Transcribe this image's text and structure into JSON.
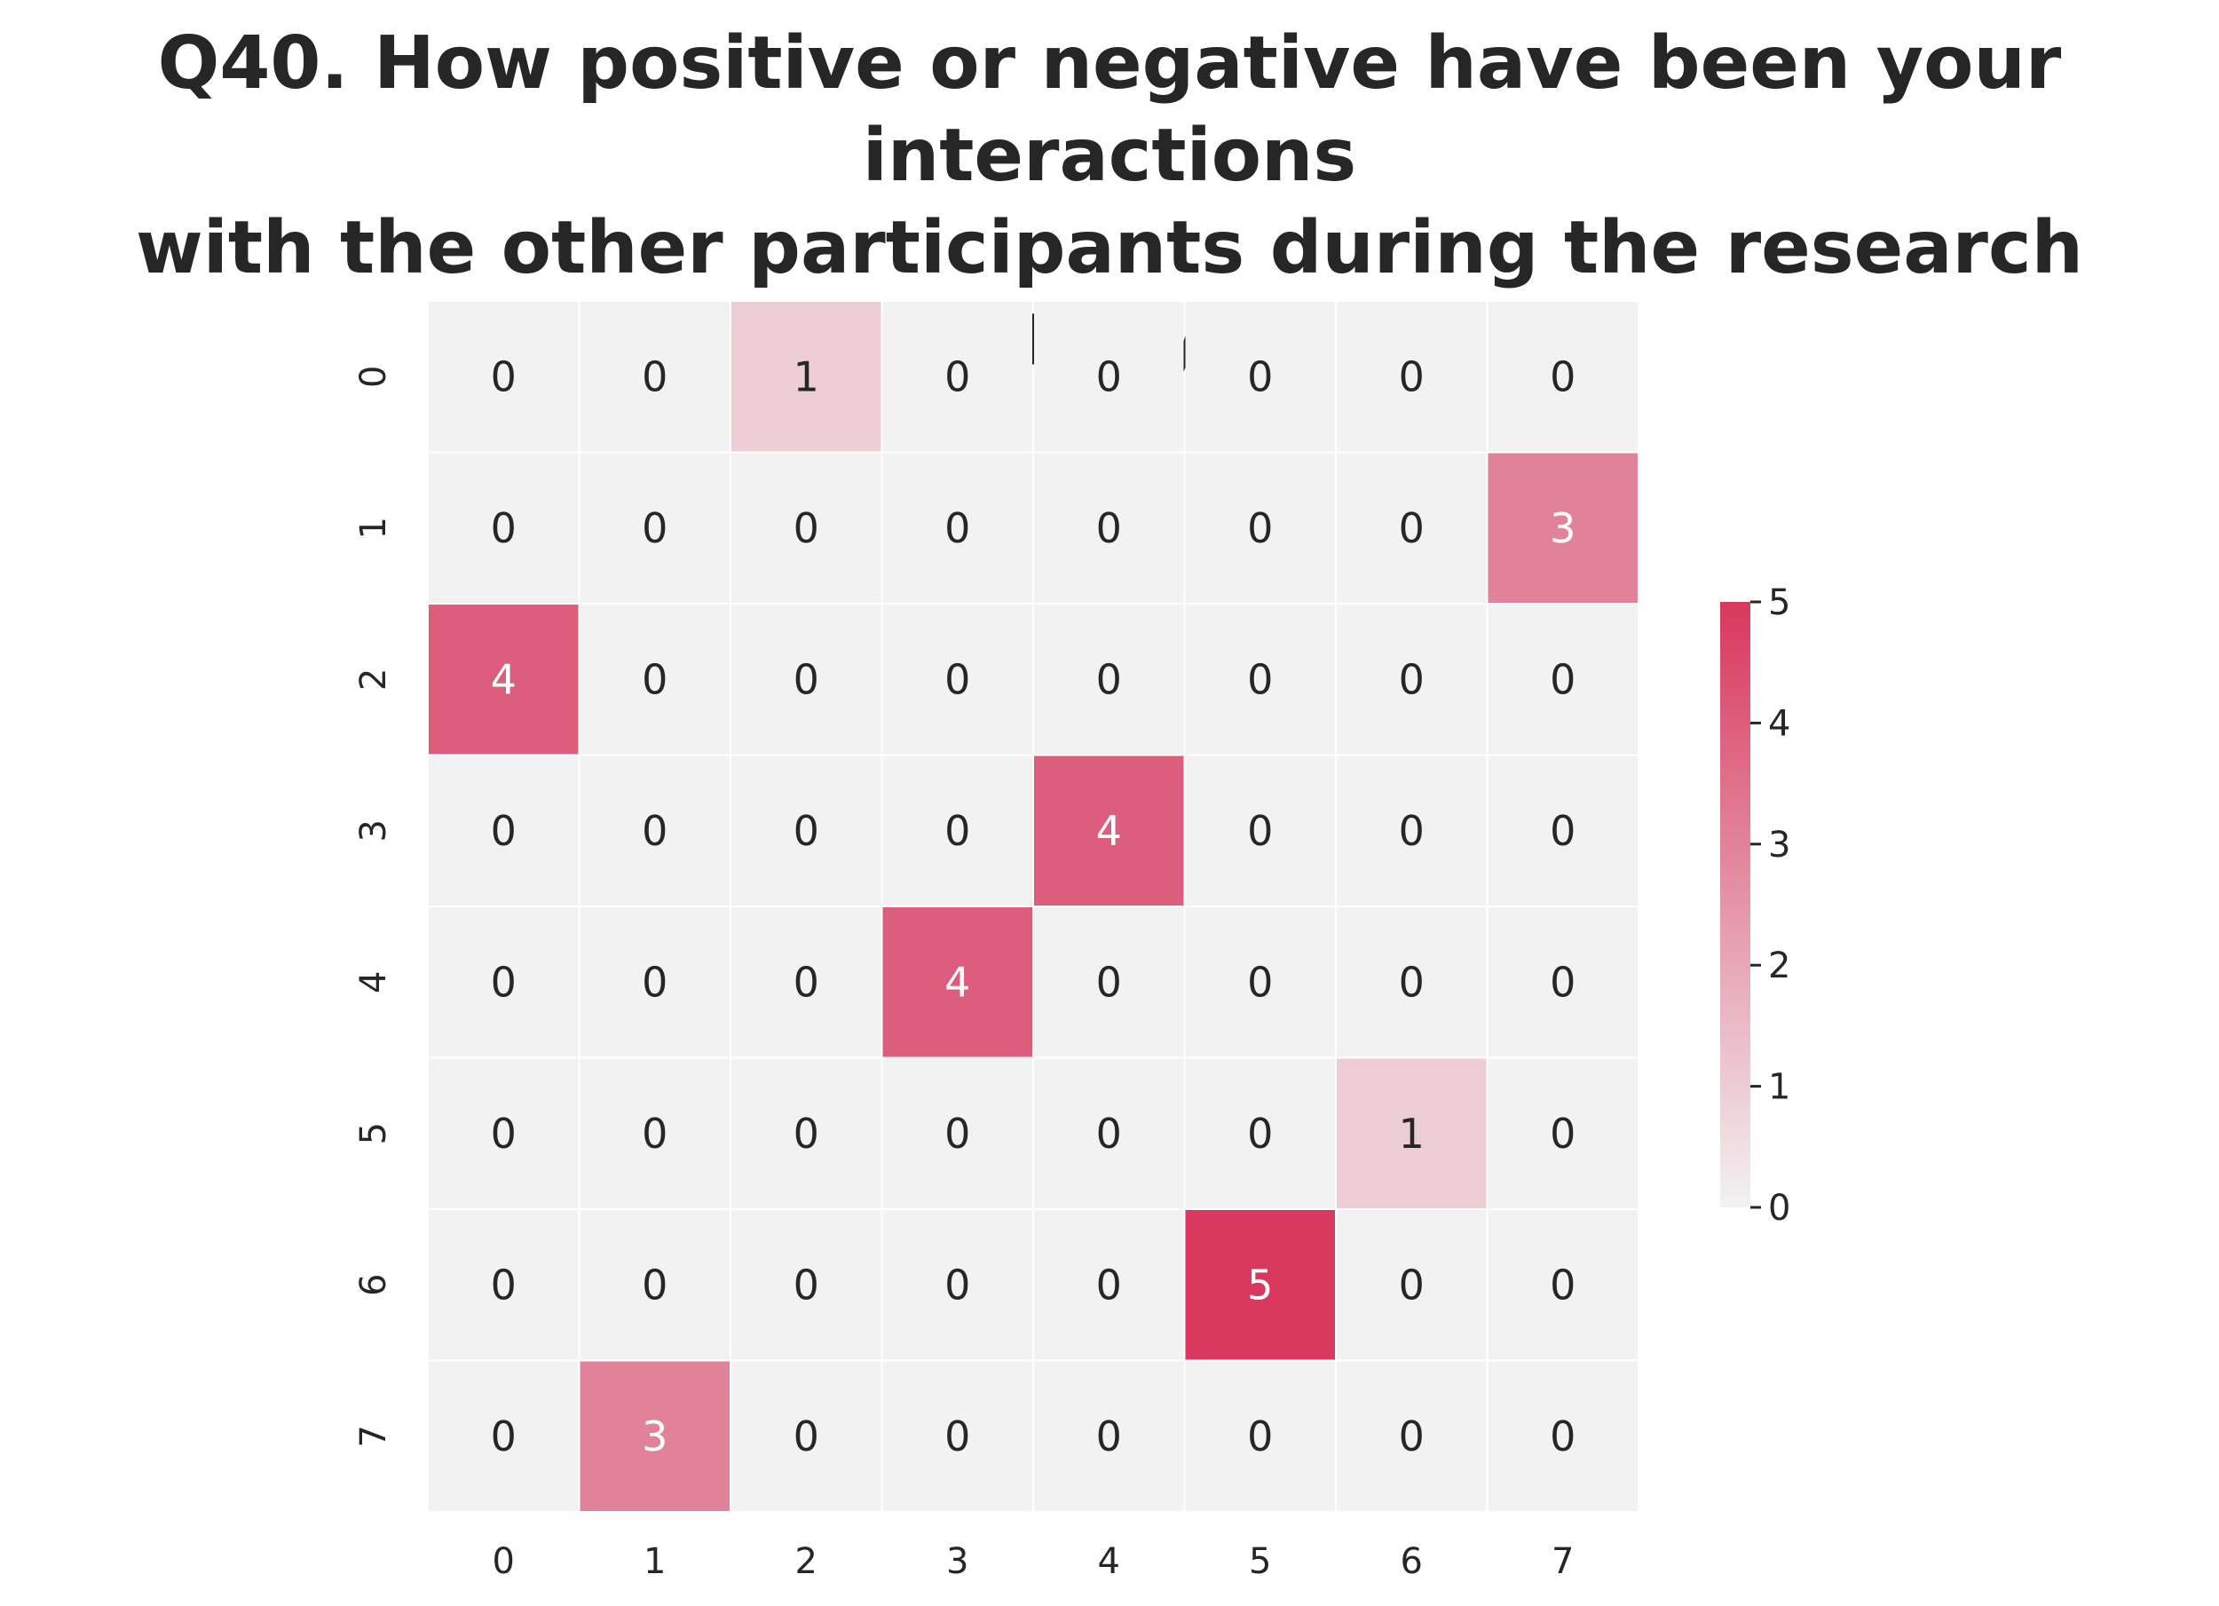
{
  "chart_data": {
    "type": "heatmap",
    "title_lines": [
      "Q40. How positive or negative have been your interactions",
      "with the other participants during the research study?"
    ],
    "xlabel": "",
    "ylabel": "",
    "x_categories": [
      "0",
      "1",
      "2",
      "3",
      "4",
      "5",
      "6",
      "7"
    ],
    "y_categories": [
      "0",
      "1",
      "2",
      "3",
      "4",
      "5",
      "6",
      "7"
    ],
    "values": [
      [
        0,
        0,
        1,
        0,
        0,
        0,
        0,
        0
      ],
      [
        0,
        0,
        0,
        0,
        0,
        0,
        0,
        3
      ],
      [
        4,
        0,
        0,
        0,
        0,
        0,
        0,
        0
      ],
      [
        0,
        0,
        0,
        0,
        4,
        0,
        0,
        0
      ],
      [
        0,
        0,
        0,
        4,
        0,
        0,
        0,
        0
      ],
      [
        0,
        0,
        0,
        0,
        0,
        0,
        1,
        0
      ],
      [
        0,
        0,
        0,
        0,
        0,
        5,
        0,
        0
      ],
      [
        0,
        3,
        0,
        0,
        0,
        0,
        0,
        0
      ]
    ],
    "annotated": true,
    "colorbar": {
      "min": 0,
      "max": 5,
      "ticks": [
        "0",
        "1",
        "2",
        "3",
        "4",
        "5"
      ]
    },
    "colors": {
      "low": "#f2f2f2",
      "high": "#d8385e",
      "gridline": "#ffffff",
      "text_dark": "#262626",
      "text_light": "#ffffff"
    }
  }
}
